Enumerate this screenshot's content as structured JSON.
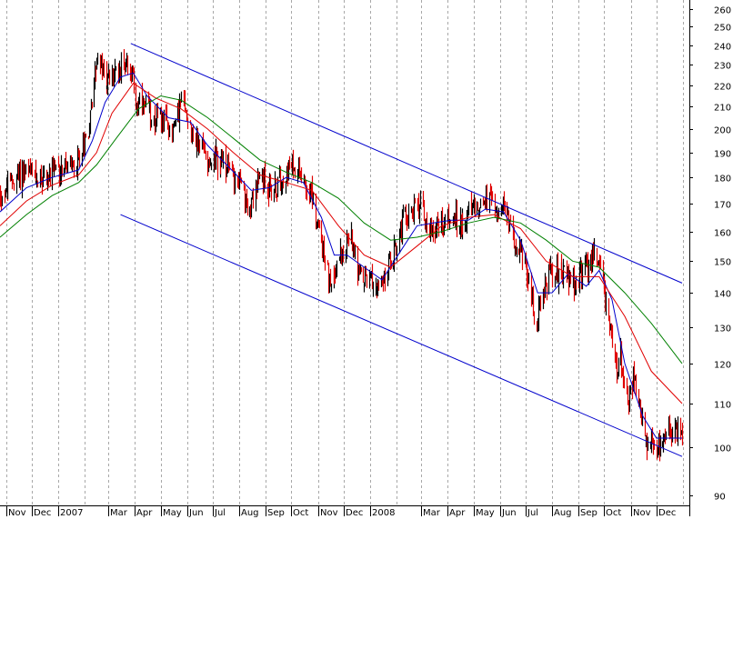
{
  "chart_data": {
    "type": "candlestick",
    "y_scale": "log",
    "ylim": [
      86,
      265
    ],
    "y_ticks": [
      90,
      100,
      110,
      120,
      130,
      140,
      150,
      160,
      170,
      180,
      190,
      200,
      210,
      220,
      230,
      240,
      250,
      260
    ],
    "x_tick_labels": [
      "Nov",
      "Dec",
      "2007",
      "Mar",
      "Apr",
      "May",
      "Jun",
      "Jul",
      "Aug",
      "Sep",
      "Oct",
      "Nov",
      "Dec",
      "2008",
      "Mar",
      "Apr",
      "May",
      "Jun",
      "Jul",
      "Aug",
      "Sep",
      "Oct",
      "Nov",
      "Dec"
    ],
    "x_range": [
      "2006-10-25",
      "2008-12-31"
    ],
    "grid": "vertical dashed at month starts",
    "bar_colors": {
      "up": "#000000",
      "down": "#e00000"
    },
    "price_path": [
      [
        "2006-10-25",
        173
      ],
      [
        "2006-11-20",
        182
      ],
      [
        "2006-12-20",
        180
      ],
      [
        "2007-01-05",
        184
      ],
      [
        "2007-01-20",
        183
      ],
      [
        "2007-02-05",
        200
      ],
      [
        "2007-02-15",
        234
      ],
      [
        "2007-02-25",
        222
      ],
      [
        "2007-03-10",
        226
      ],
      [
        "2007-03-25",
        234
      ],
      [
        "2007-04-02",
        212
      ],
      [
        "2007-04-25",
        205
      ],
      [
        "2007-05-15",
        200
      ],
      [
        "2007-05-25",
        213
      ],
      [
        "2007-06-10",
        196
      ],
      [
        "2007-06-25",
        188
      ],
      [
        "2007-07-15",
        185
      ],
      [
        "2007-08-01",
        178
      ],
      [
        "2007-08-10",
        167
      ],
      [
        "2007-08-25",
        180
      ],
      [
        "2007-09-10",
        175
      ],
      [
        "2007-09-25",
        183
      ],
      [
        "2007-10-10",
        185
      ],
      [
        "2007-10-25",
        172
      ],
      [
        "2007-11-10",
        150
      ],
      [
        "2007-11-15",
        140
      ],
      [
        "2007-11-25",
        152
      ],
      [
        "2007-12-10",
        158
      ],
      [
        "2007-12-20",
        145
      ],
      [
        "2008-01-05",
        144
      ],
      [
        "2008-01-12",
        140
      ],
      [
        "2008-01-25",
        150
      ],
      [
        "2008-02-10",
        165
      ],
      [
        "2008-02-20",
        167
      ],
      [
        "2008-03-01",
        170
      ],
      [
        "2008-03-10",
        160
      ],
      [
        "2008-04-01",
        165
      ],
      [
        "2008-04-15",
        163
      ],
      [
        "2008-05-01",
        168
      ],
      [
        "2008-05-15",
        172
      ],
      [
        "2008-05-25",
        170
      ],
      [
        "2008-06-05",
        168
      ],
      [
        "2008-06-15",
        160
      ],
      [
        "2008-06-28",
        150
      ],
      [
        "2008-07-05",
        145
      ],
      [
        "2008-07-12",
        130
      ],
      [
        "2008-07-20",
        140
      ],
      [
        "2008-07-28",
        146
      ],
      [
        "2008-08-10",
        148
      ],
      [
        "2008-08-25",
        143
      ],
      [
        "2008-09-10",
        147
      ],
      [
        "2008-09-20",
        153
      ],
      [
        "2008-09-28",
        145
      ],
      [
        "2008-10-05",
        135
      ],
      [
        "2008-10-12",
        118
      ],
      [
        "2008-10-20",
        122
      ],
      [
        "2008-10-28",
        110
      ],
      [
        "2008-11-05",
        118
      ],
      [
        "2008-11-12",
        108
      ],
      [
        "2008-11-20",
        98
      ],
      [
        "2008-11-28",
        102
      ],
      [
        "2008-12-05",
        99
      ],
      [
        "2008-12-15",
        103
      ],
      [
        "2008-12-31",
        104
      ]
    ],
    "series": [
      {
        "color": "#0000cc",
        "values": [
          [
            "2006-10-25",
            167
          ],
          [
            "2006-11-25",
            176
          ],
          [
            "2006-12-25",
            180
          ],
          [
            "2007-01-25",
            183
          ],
          [
            "2007-02-10",
            195
          ],
          [
            "2007-02-25",
            212
          ],
          [
            "2007-03-15",
            224
          ],
          [
            "2007-03-30",
            226
          ],
          [
            "2007-04-15",
            215
          ],
          [
            "2007-05-10",
            205
          ],
          [
            "2007-06-05",
            203
          ],
          [
            "2007-06-25",
            193
          ],
          [
            "2007-07-20",
            184
          ],
          [
            "2007-08-15",
            175
          ],
          [
            "2007-09-05",
            176
          ],
          [
            "2007-09-25",
            180
          ],
          [
            "2007-10-15",
            178
          ],
          [
            "2007-11-05",
            165
          ],
          [
            "2007-11-20",
            152
          ],
          [
            "2007-12-05",
            152
          ],
          [
            "2007-12-25",
            148
          ],
          [
            "2008-01-15",
            144
          ],
          [
            "2008-02-05",
            153
          ],
          [
            "2008-02-25",
            162
          ],
          [
            "2008-03-15",
            163
          ],
          [
            "2008-04-05",
            164
          ],
          [
            "2008-04-25",
            164
          ],
          [
            "2008-05-15",
            168
          ],
          [
            "2008-06-05",
            167
          ],
          [
            "2008-06-25",
            157
          ],
          [
            "2008-07-15",
            140
          ],
          [
            "2008-08-01",
            140
          ],
          [
            "2008-08-20",
            146
          ],
          [
            "2008-09-10",
            142
          ],
          [
            "2008-09-25",
            147
          ],
          [
            "2008-10-10",
            138
          ],
          [
            "2008-10-25",
            120
          ],
          [
            "2008-11-15",
            107
          ],
          [
            "2008-12-01",
            102
          ],
          [
            "2008-12-31",
            102
          ]
        ]
      },
      {
        "color": "#e00000",
        "values": [
          [
            "2006-10-25",
            162
          ],
          [
            "2006-11-25",
            171
          ],
          [
            "2006-12-25",
            177
          ],
          [
            "2007-01-25",
            181
          ],
          [
            "2007-02-15",
            190
          ],
          [
            "2007-03-05",
            207
          ],
          [
            "2007-03-30",
            221
          ],
          [
            "2007-04-25",
            214
          ],
          [
            "2007-05-25",
            209
          ],
          [
            "2007-06-25",
            200
          ],
          [
            "2007-07-25",
            190
          ],
          [
            "2007-08-25",
            181
          ],
          [
            "2007-09-25",
            178
          ],
          [
            "2007-10-25",
            175
          ],
          [
            "2007-11-25",
            162
          ],
          [
            "2007-12-25",
            152
          ],
          [
            "2008-01-25",
            148
          ],
          [
            "2008-02-25",
            155
          ],
          [
            "2008-03-25",
            162
          ],
          [
            "2008-04-25",
            165
          ],
          [
            "2008-05-25",
            166
          ],
          [
            "2008-06-25",
            161
          ],
          [
            "2008-07-25",
            150
          ],
          [
            "2008-08-25",
            145
          ],
          [
            "2008-09-25",
            145
          ],
          [
            "2008-10-25",
            133
          ],
          [
            "2008-11-25",
            118
          ],
          [
            "2008-12-31",
            110
          ]
        ]
      },
      {
        "color": "#008000",
        "values": [
          [
            "2006-10-25",
            158
          ],
          [
            "2006-11-25",
            166
          ],
          [
            "2006-12-25",
            173
          ],
          [
            "2007-01-25",
            178
          ],
          [
            "2007-02-15",
            185
          ],
          [
            "2007-03-10",
            196
          ],
          [
            "2007-04-05",
            209
          ],
          [
            "2007-05-01",
            215
          ],
          [
            "2007-05-25",
            213
          ],
          [
            "2007-06-25",
            205
          ],
          [
            "2007-07-25",
            196
          ],
          [
            "2007-08-25",
            187
          ],
          [
            "2007-09-25",
            182
          ],
          [
            "2007-10-25",
            178
          ],
          [
            "2007-11-25",
            172
          ],
          [
            "2007-12-25",
            163
          ],
          [
            "2008-01-25",
            157
          ],
          [
            "2008-02-25",
            158
          ],
          [
            "2008-03-25",
            160
          ],
          [
            "2008-04-25",
            163
          ],
          [
            "2008-05-25",
            165
          ],
          [
            "2008-06-25",
            163
          ],
          [
            "2008-07-25",
            157
          ],
          [
            "2008-08-25",
            150
          ],
          [
            "2008-09-25",
            148
          ],
          [
            "2008-10-25",
            140
          ],
          [
            "2008-11-25",
            131
          ],
          [
            "2008-12-31",
            120
          ]
        ]
      }
    ],
    "channel_lines": [
      {
        "color": "#0000cc",
        "points": [
          [
            "2007-03-27",
            241
          ],
          [
            "2008-12-31",
            143
          ]
        ]
      },
      {
        "color": "#0000cc",
        "points": [
          [
            "2007-03-15",
            166
          ],
          [
            "2008-12-31",
            98
          ]
        ]
      }
    ]
  }
}
